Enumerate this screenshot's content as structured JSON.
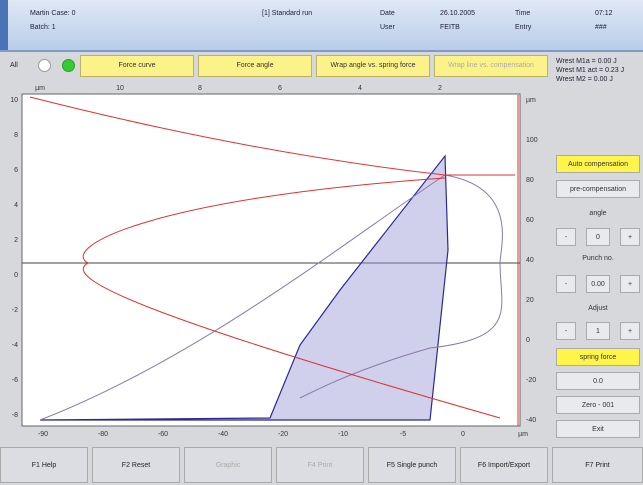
{
  "header": {
    "case": "Martin Case: 0",
    "batch": "Batch: 1",
    "run": "[1] Standard run",
    "date_label": "Date",
    "user_label": "User",
    "date": "26.10.2005",
    "user": "FEITB",
    "time_label": "Time",
    "entry_label": "Entry",
    "time": "07:12",
    "entry": "###"
  },
  "toolbar": {
    "all": "All",
    "buttons": [
      "Force curve",
      "Force angle",
      "Wrap angle vs. spring force",
      "Wrap line vs. compensation"
    ]
  },
  "info": [
    "Wrest M1a = 0.00 J",
    "Wrest M1 act = 0.23 J",
    "Wrest M2 = 0.00 J"
  ],
  "side": {
    "auto": "Auto compensation",
    "pre": "pre-compensation",
    "angle": "angle",
    "minus": "-",
    "plus": "+",
    "angle_value": "0",
    "punch": "Punch no.",
    "punch_value": "0.00",
    "adjust": "Adjust",
    "adjust_value": "1",
    "spring": "spring force",
    "spring_value": "0.0",
    "zero": "Zero - 001",
    "exit": "Exit"
  },
  "plot": {
    "left_ticks": [
      "10",
      "8",
      "6",
      "4",
      "2",
      "0",
      "-2",
      "-4",
      "-6",
      "-8"
    ],
    "top_ticks": [
      "µm",
      "10",
      "8",
      "6",
      "4",
      "2"
    ],
    "right_ticks": [
      "µm",
      "100",
      "80",
      "60",
      "40",
      "20",
      "0",
      "-20",
      "-40"
    ],
    "bottom_ticks": [
      "-90",
      "-80",
      "-60",
      "-40",
      "-20",
      "-10",
      "-5",
      "0",
      "µm"
    ]
  },
  "fkeys": [
    "F1 Help",
    "F2 Reset",
    "Graphic",
    "F4 Print",
    "F5 Single punch",
    "F6 Import/Export",
    "F7 Print"
  ]
}
